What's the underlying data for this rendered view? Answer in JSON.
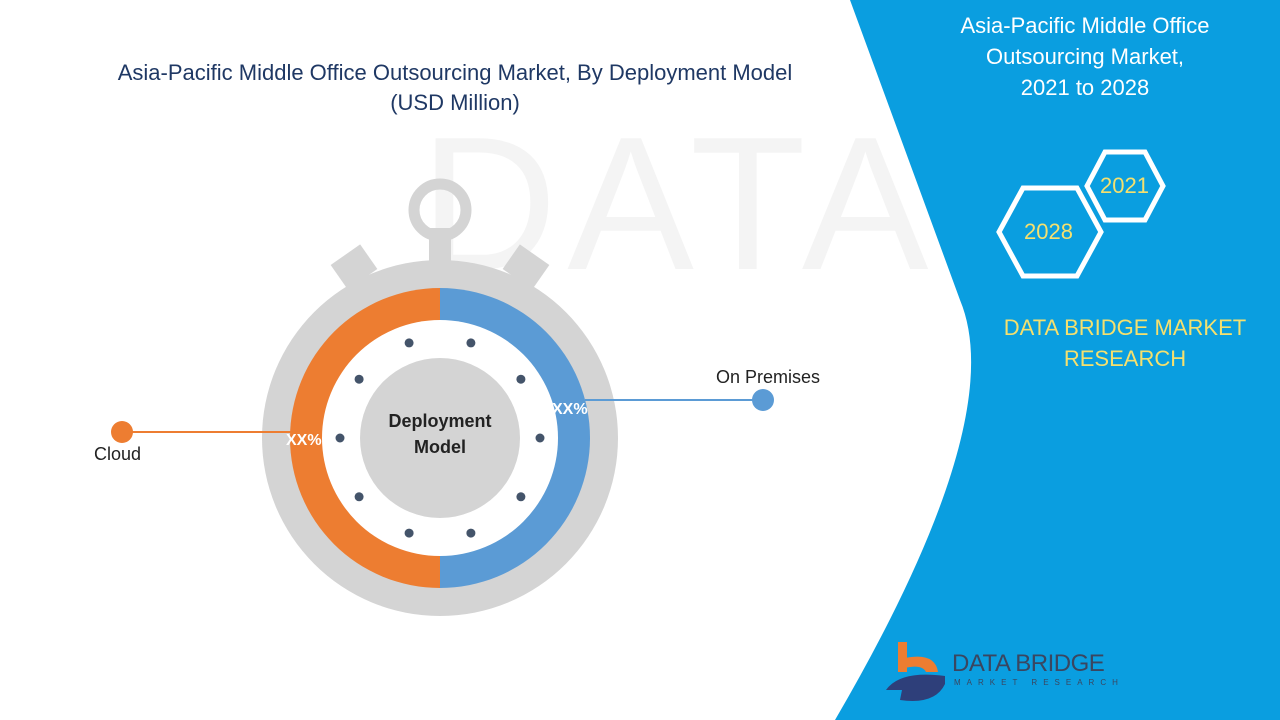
{
  "title": {
    "line1": "Asia-Pacific Middle Office Outsourcing Market, By Deployment Model",
    "line2": "(USD Million)"
  },
  "side_panel": {
    "title_line1": "Asia-Pacific Middle Office",
    "title_line2": "Outsourcing Market,",
    "title_line3": "2021 to 2028",
    "year_a": "2021",
    "year_b": "2028",
    "brand_line1": "DATA BRIDGE MARKET",
    "brand_line2": "RESEARCH",
    "accent": "#0a9ee0"
  },
  "logo": {
    "name": "DATA BRIDGE",
    "tagline": "MARKET RESEARCH"
  },
  "watermark": "DATA BRIDGE",
  "chart_data": {
    "type": "pie",
    "title": "Asia-Pacific Middle Office Outsourcing Market, By Deployment Model (USD Million)",
    "center_label_line1": "Deployment",
    "center_label_line2": "Model",
    "slices": [
      {
        "name": "Cloud",
        "value": 50,
        "label": "XX%",
        "color": "#ed7d31"
      },
      {
        "name": "On Premises",
        "value": 50,
        "label": "XX%",
        "color": "#5b9bd5"
      }
    ]
  }
}
